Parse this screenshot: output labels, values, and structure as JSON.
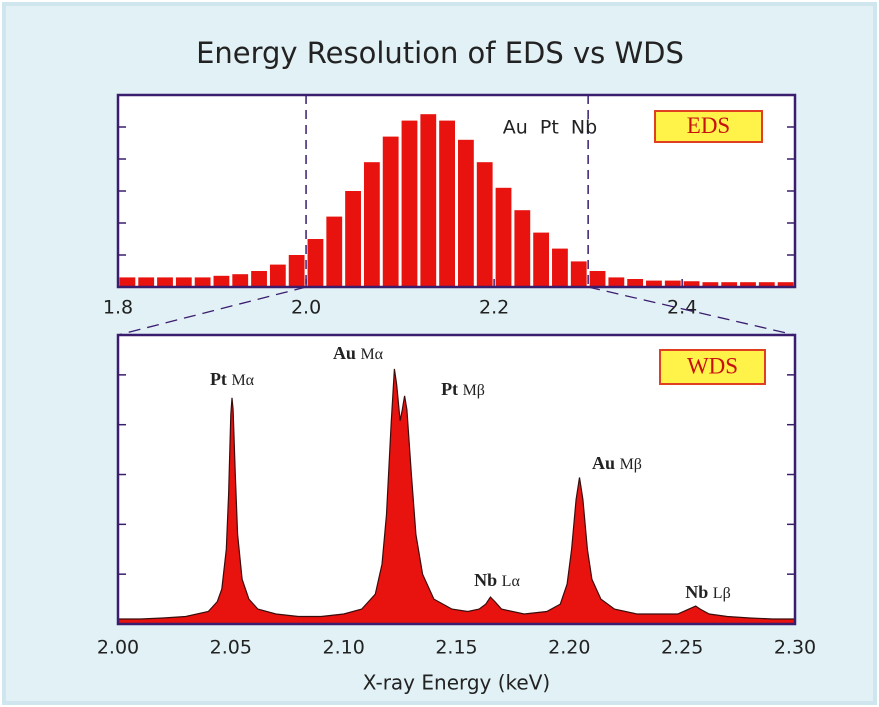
{
  "chart_data": [
    {
      "type": "histogram",
      "title": "Energy Resolution of EDS vs WDS",
      "label": "EDS",
      "annotation": "Au  Pt  Nb",
      "bins": [
        1.8,
        1.82,
        1.84,
        1.86,
        1.88,
        1.9,
        1.92,
        1.94,
        1.96,
        1.98,
        2.0,
        2.02,
        2.04,
        2.06,
        2.08,
        2.1,
        2.12,
        2.14,
        2.16,
        2.18,
        2.2,
        2.22,
        2.24,
        2.26,
        2.28,
        2.3,
        2.32,
        2.34,
        2.36,
        2.38,
        2.4,
        2.42,
        2.44,
        2.46,
        2.48,
        2.5,
        2.52
      ],
      "values": [
        0.3,
        0.3,
        0.3,
        0.3,
        0.3,
        0.35,
        0.4,
        0.5,
        0.7,
        1.0,
        1.5,
        2.2,
        3.0,
        3.9,
        4.7,
        5.2,
        5.4,
        5.2,
        4.6,
        3.9,
        3.1,
        2.4,
        1.7,
        1.2,
        0.8,
        0.5,
        0.3,
        0.25,
        0.2,
        0.2,
        0.18,
        0.15,
        0.15,
        0.15,
        0.15,
        0.15
      ],
      "color": "#e8120e",
      "xlim": [
        1.8,
        2.52
      ],
      "xticks": [
        1.8,
        {
          "value": 2,
          "label": "2.0"
        },
        2.2,
        2.4
      ],
      "ylim": [
        0,
        6
      ],
      "yticks": [
        1,
        2,
        3,
        4,
        5
      ]
    },
    {
      "type": "area",
      "label": "WDS",
      "x_label": "X-ray Energy (keV)",
      "annotations": [
        {
          "element": "Pt",
          "line": "Mα"
        },
        {
          "element": "Au",
          "line": "Mα"
        },
        {
          "element": "Pt",
          "line": "Mβ"
        },
        {
          "element": "Nb",
          "line": "Lα"
        },
        {
          "element": "Au",
          "line": "Mβ"
        },
        {
          "element": "Nb",
          "line": "Lβ"
        }
      ],
      "x": [
        2.0,
        2.01,
        2.02,
        2.03,
        2.04,
        2.044,
        2.046,
        2.048,
        2.049,
        2.05,
        2.0505,
        2.051,
        2.052,
        2.053,
        2.055,
        2.058,
        2.062,
        2.07,
        2.08,
        2.09,
        2.1,
        2.108,
        2.114,
        2.117,
        2.119,
        2.121,
        2.1225,
        2.1235,
        2.125,
        2.126,
        2.127,
        2.128,
        2.13,
        2.132,
        2.135,
        2.14,
        2.148,
        2.155,
        2.16,
        2.163,
        2.165,
        2.167,
        2.17,
        2.18,
        2.19,
        2.196,
        2.199,
        2.201,
        2.203,
        2.2045,
        2.206,
        2.208,
        2.21,
        2.214,
        2.22,
        2.23,
        2.24,
        2.248,
        2.253,
        2.256,
        2.258,
        2.262,
        2.27,
        2.28,
        2.29,
        2.3
      ],
      "values": [
        0.1,
        0.1,
        0.12,
        0.15,
        0.25,
        0.45,
        0.7,
        1.5,
        2.6,
        4.2,
        4.54,
        4.3,
        3.0,
        1.8,
        0.9,
        0.5,
        0.3,
        0.2,
        0.15,
        0.15,
        0.2,
        0.3,
        0.6,
        1.2,
        2.2,
        4.0,
        5.12,
        4.8,
        4.08,
        4.3,
        4.58,
        4.3,
        3.0,
        1.8,
        1.0,
        0.5,
        0.3,
        0.25,
        0.3,
        0.4,
        0.54,
        0.45,
        0.3,
        0.2,
        0.25,
        0.4,
        0.8,
        1.5,
        2.5,
        2.94,
        2.5,
        1.5,
        0.9,
        0.5,
        0.3,
        0.2,
        0.2,
        0.2,
        0.3,
        0.36,
        0.3,
        0.2,
        0.15,
        0.12,
        0.1,
        0.1
      ],
      "color": "#e8120e",
      "xlim": [
        2.0,
        2.3
      ],
      "xticks": [
        {
          "value": 2,
          "label": "2.00"
        },
        2.05,
        {
          "value": 2.1,
          "label": "2.10"
        },
        2.15,
        {
          "value": 2.2,
          "label": "2.20"
        },
        2.25,
        {
          "value": 2.3,
          "label": "2.30"
        }
      ],
      "ylim": [
        0,
        5.8
      ],
      "yticks": [
        1,
        2,
        3,
        4,
        5
      ]
    }
  ]
}
